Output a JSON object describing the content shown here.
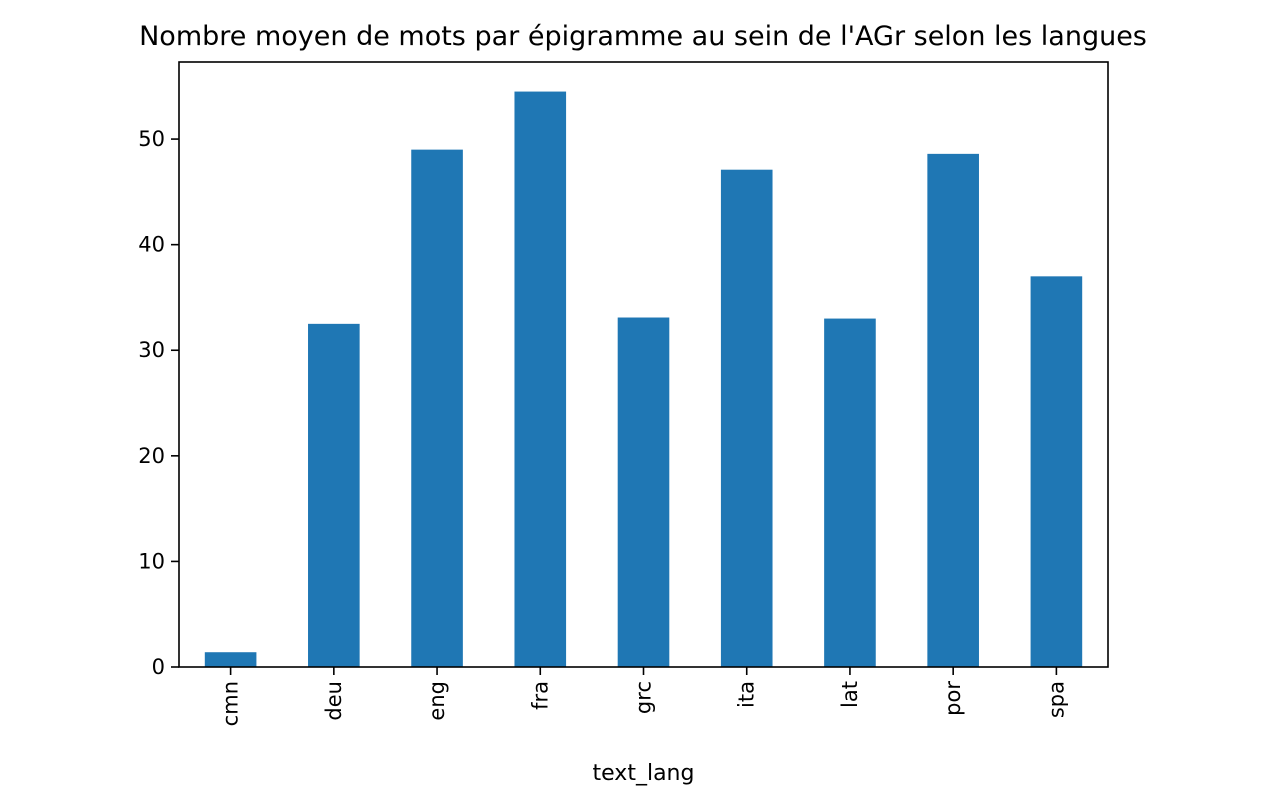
{
  "chart_data": {
    "type": "bar",
    "title": "Nombre moyen de mots par épigramme au sein de l'AGr selon les langues",
    "xlabel": "text_lang",
    "ylabel": "",
    "categories": [
      "cmn",
      "deu",
      "eng",
      "fra",
      "grc",
      "ita",
      "lat",
      "por",
      "spa"
    ],
    "values": [
      1.4,
      32.5,
      49.0,
      54.5,
      33.1,
      47.1,
      33.0,
      48.6,
      37.0
    ],
    "ylim": [
      0,
      57.3
    ],
    "yticks": [
      0,
      10,
      20,
      30,
      40,
      50
    ],
    "ytick_labels": [
      "0",
      "10",
      "20",
      "30",
      "40",
      "50"
    ],
    "grid": false,
    "legend": "none",
    "bar_color": "#1f77b4"
  }
}
